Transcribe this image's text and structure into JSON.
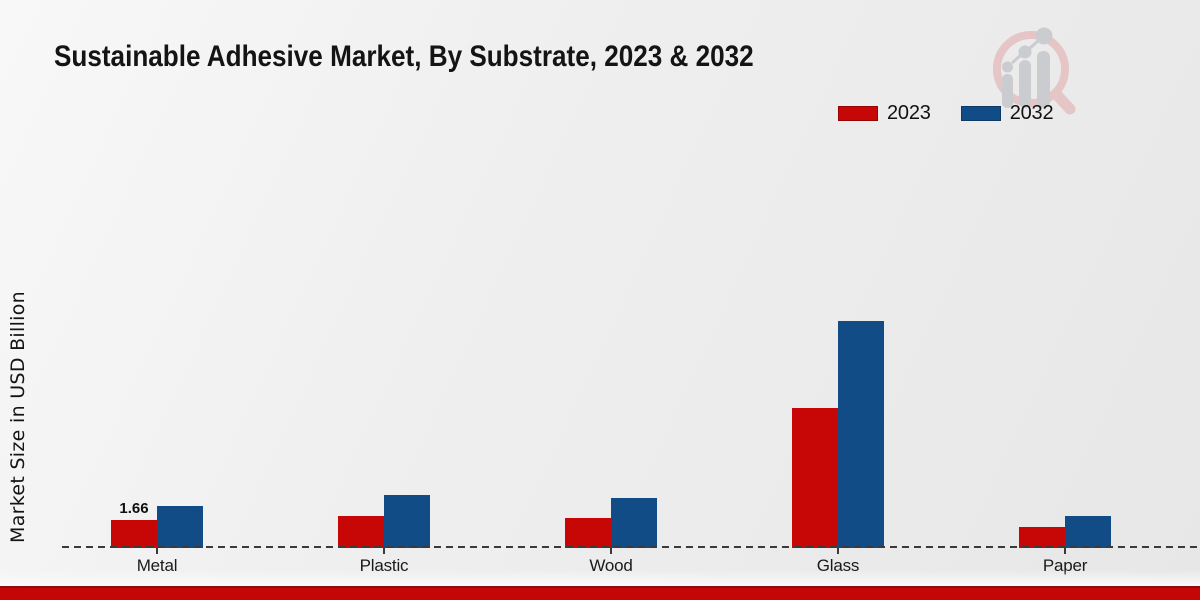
{
  "title": "Sustainable Adhesive Market, By Substrate, 2023 & 2032",
  "y_axis_label": "Market Size in USD Billion",
  "legend": [
    {
      "label": "2023",
      "color": "#c70606"
    },
    {
      "label": "2032",
      "color": "#114c87"
    }
  ],
  "watermark_icon": "magnifier-bar-chart-logo",
  "colors": {
    "series_2023": "#c70606",
    "series_2032": "#114c87",
    "footer_bar": "#c40606",
    "axis_dash": "#3a3a3a",
    "watermark_pink": "#e5c5c6",
    "watermark_gray": "#cbccd0"
  },
  "chart_data": {
    "type": "bar",
    "title": "Sustainable Adhesive Market, By Substrate, 2023 & 2032",
    "categories": [
      "Metal",
      "Plastic",
      "Wood",
      "Glass",
      "Paper"
    ],
    "series": [
      {
        "name": "2023",
        "color": "#c70606",
        "values": [
          1.66,
          1.9,
          1.78,
          8.3,
          1.24
        ],
        "bar_labels": [
          "1.66",
          "",
          "",
          "",
          ""
        ]
      },
      {
        "name": "2032",
        "color": "#114c87",
        "values": [
          2.49,
          3.14,
          2.96,
          13.46,
          1.9
        ]
      }
    ],
    "xlabel": "",
    "ylabel": "Market Size in USD Billion",
    "ylim": [
      0,
      24
    ],
    "grid": false,
    "y_axis_ticks_visible": false,
    "baseline_style": "dashed",
    "legend_position": "top-right"
  }
}
